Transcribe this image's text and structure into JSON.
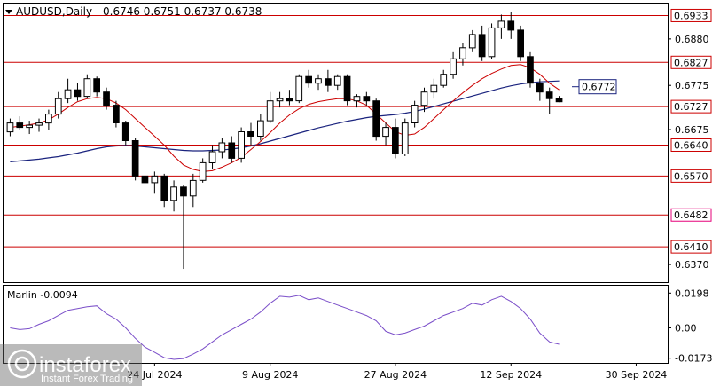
{
  "header": {
    "symbol": "AUDUSD,Daily",
    "ohlc": "0.6746 0.6751 0.6737 0.6738"
  },
  "indicator": {
    "label": "Marlin -0.0094"
  },
  "watermark": {
    "brand": "instaforex",
    "tagline": "Instant Forex Trading"
  },
  "colors": {
    "levels": "#cc0000",
    "ma_fast": "#cc0000",
    "ma_slow": "#1a237e",
    "oscillator": "#7b4fc9",
    "candles": "#000000",
    "callout": "#1a237e"
  },
  "chart_data": [
    {
      "type": "candlestick",
      "title": "",
      "price_axis_ticks": [
        "0.6933",
        "0.6880",
        "0.6827",
        "0.6775",
        "0.6727",
        "0.6675",
        "0.6640",
        "0.6570",
        "0.6482",
        "0.6410",
        "0.6370"
      ],
      "levels": [
        0.6933,
        0.6827,
        0.6727,
        0.664,
        0.657,
        0.6482,
        0.641
      ],
      "level_labels": [
        "0.6933",
        "0.6827",
        "0.6727",
        "0.6640",
        "0.6570",
        "0.6482",
        "0.6410"
      ],
      "callout": {
        "label": "0.6772",
        "value": 0.6772
      },
      "ylim": [
        0.633,
        0.696
      ],
      "x_labels": [
        "24 Jul 2024",
        "9 Aug 2024",
        "27 Aug 2024",
        "12 Sep 2024",
        "30 Sep 2024"
      ],
      "x_label_bar_index": [
        15,
        27,
        40,
        52,
        65
      ],
      "ohlc": [
        [
          0.667,
          0.67,
          0.666,
          0.669
        ],
        [
          0.669,
          0.6705,
          0.6675,
          0.668
        ],
        [
          0.668,
          0.6695,
          0.6665,
          0.6685
        ],
        [
          0.6685,
          0.67,
          0.667,
          0.669
        ],
        [
          0.669,
          0.672,
          0.6675,
          0.671
        ],
        [
          0.671,
          0.676,
          0.67,
          0.6745
        ],
        [
          0.6745,
          0.679,
          0.6735,
          0.6765
        ],
        [
          0.6765,
          0.678,
          0.674,
          0.675
        ],
        [
          0.675,
          0.68,
          0.6745,
          0.679
        ],
        [
          0.679,
          0.6795,
          0.675,
          0.676
        ],
        [
          0.676,
          0.677,
          0.672,
          0.673
        ],
        [
          0.673,
          0.674,
          0.668,
          0.669
        ],
        [
          0.669,
          0.6695,
          0.664,
          0.665
        ],
        [
          0.665,
          0.6655,
          0.656,
          0.657
        ],
        [
          0.657,
          0.659,
          0.654,
          0.6555
        ],
        [
          0.6555,
          0.658,
          0.653,
          0.657
        ],
        [
          0.657,
          0.6575,
          0.65,
          0.6515
        ],
        [
          0.6515,
          0.656,
          0.649,
          0.6545
        ],
        [
          0.6545,
          0.655,
          0.636,
          0.6525
        ],
        [
          0.6525,
          0.6575,
          0.65,
          0.656
        ],
        [
          0.656,
          0.661,
          0.6555,
          0.66
        ],
        [
          0.66,
          0.664,
          0.6585,
          0.6625
        ],
        [
          0.6625,
          0.6655,
          0.661,
          0.6645
        ],
        [
          0.6645,
          0.666,
          0.66,
          0.661
        ],
        [
          0.661,
          0.668,
          0.66,
          0.667
        ],
        [
          0.667,
          0.669,
          0.664,
          0.666
        ],
        [
          0.666,
          0.671,
          0.665,
          0.6695
        ],
        [
          0.6695,
          0.676,
          0.669,
          0.674
        ],
        [
          0.674,
          0.676,
          0.6725,
          0.6745
        ],
        [
          0.6745,
          0.6765,
          0.673,
          0.674
        ],
        [
          0.674,
          0.68,
          0.6735,
          0.6795
        ],
        [
          0.6795,
          0.681,
          0.677,
          0.678
        ],
        [
          0.678,
          0.68,
          0.6765,
          0.679
        ],
        [
          0.679,
          0.681,
          0.676,
          0.6775
        ],
        [
          0.6775,
          0.68,
          0.6765,
          0.6795
        ],
        [
          0.6795,
          0.68,
          0.673,
          0.674
        ],
        [
          0.674,
          0.6755,
          0.6725,
          0.675
        ],
        [
          0.675,
          0.676,
          0.673,
          0.674
        ],
        [
          0.674,
          0.6745,
          0.665,
          0.666
        ],
        [
          0.666,
          0.669,
          0.664,
          0.668
        ],
        [
          0.668,
          0.67,
          0.661,
          0.662
        ],
        [
          0.662,
          0.67,
          0.6615,
          0.669
        ],
        [
          0.669,
          0.674,
          0.668,
          0.673
        ],
        [
          0.673,
          0.677,
          0.6715,
          0.676
        ],
        [
          0.676,
          0.679,
          0.6745,
          0.6775
        ],
        [
          0.6775,
          0.681,
          0.677,
          0.68
        ],
        [
          0.68,
          0.685,
          0.679,
          0.6835
        ],
        [
          0.6835,
          0.687,
          0.682,
          0.686
        ],
        [
          0.686,
          0.69,
          0.685,
          0.689
        ],
        [
          0.689,
          0.691,
          0.683,
          0.684
        ],
        [
          0.684,
          0.6915,
          0.6835,
          0.6905
        ],
        [
          0.6905,
          0.6935,
          0.688,
          0.692
        ],
        [
          0.692,
          0.694,
          0.688,
          0.69
        ],
        [
          0.69,
          0.691,
          0.683,
          0.684
        ],
        [
          0.684,
          0.685,
          0.677,
          0.678
        ],
        [
          0.678,
          0.679,
          0.674,
          0.676
        ],
        [
          0.676,
          0.677,
          0.671,
          0.6745
        ],
        [
          0.6745,
          0.6751,
          0.6737,
          0.6738
        ]
      ],
      "ma_fast": [
        0.668,
        0.6683,
        0.6686,
        0.669,
        0.6697,
        0.671,
        0.6725,
        0.6738,
        0.6745,
        0.6748,
        0.6745,
        0.6735,
        0.672,
        0.67,
        0.668,
        0.666,
        0.664,
        0.6615,
        0.6595,
        0.6585,
        0.658,
        0.6582,
        0.659,
        0.66,
        0.6612,
        0.663,
        0.6648,
        0.6668,
        0.669,
        0.6708,
        0.6722,
        0.6732,
        0.6738,
        0.6742,
        0.6745,
        0.6745,
        0.674,
        0.673,
        0.671,
        0.669,
        0.667,
        0.6662,
        0.6665,
        0.668,
        0.67,
        0.672,
        0.674,
        0.6758,
        0.6775,
        0.679,
        0.6802,
        0.6812,
        0.682,
        0.6822,
        0.6815,
        0.68,
        0.678,
        0.6765
      ],
      "ma_slow": [
        0.6602,
        0.6604,
        0.6606,
        0.6608,
        0.6611,
        0.6614,
        0.6618,
        0.6622,
        0.6627,
        0.6632,
        0.6636,
        0.6638,
        0.6639,
        0.6638,
        0.6636,
        0.6634,
        0.6632,
        0.663,
        0.6628,
        0.6627,
        0.6627,
        0.6628,
        0.6629,
        0.6631,
        0.6634,
        0.6638,
        0.6643,
        0.6649,
        0.6655,
        0.6661,
        0.6667,
        0.6673,
        0.6679,
        0.6684,
        0.6689,
        0.6694,
        0.6698,
        0.6702,
        0.6705,
        0.6707,
        0.6709,
        0.6712,
        0.6716,
        0.6721,
        0.6727,
        0.6733,
        0.6739,
        0.6745,
        0.6751,
        0.6757,
        0.6763,
        0.6769,
        0.6774,
        0.6778,
        0.6781,
        0.6783,
        0.6784,
        0.6785
      ]
    },
    {
      "type": "line",
      "title": "Marlin -0.0094",
      "axis_ticks": [
        "0.0198",
        "0.00",
        "-0.0173"
      ],
      "ylim": [
        -0.02,
        0.024
      ],
      "zero_line": 0.0,
      "values": [
        0.0,
        -0.001,
        -0.0005,
        0.002,
        0.004,
        0.007,
        0.01,
        0.011,
        0.012,
        0.0125,
        0.008,
        0.005,
        0.0,
        -0.006,
        -0.011,
        -0.014,
        -0.017,
        -0.018,
        -0.0175,
        -0.015,
        -0.012,
        -0.008,
        -0.004,
        -0.001,
        0.002,
        0.005,
        0.009,
        0.014,
        0.018,
        0.0175,
        0.0185,
        0.016,
        0.017,
        0.015,
        0.013,
        0.011,
        0.009,
        0.007,
        0.004,
        -0.002,
        -0.004,
        -0.003,
        -0.001,
        0.001,
        0.004,
        0.007,
        0.009,
        0.011,
        0.014,
        0.013,
        0.016,
        0.018,
        0.015,
        0.011,
        0.005,
        -0.003,
        -0.008,
        -0.0094
      ]
    }
  ]
}
